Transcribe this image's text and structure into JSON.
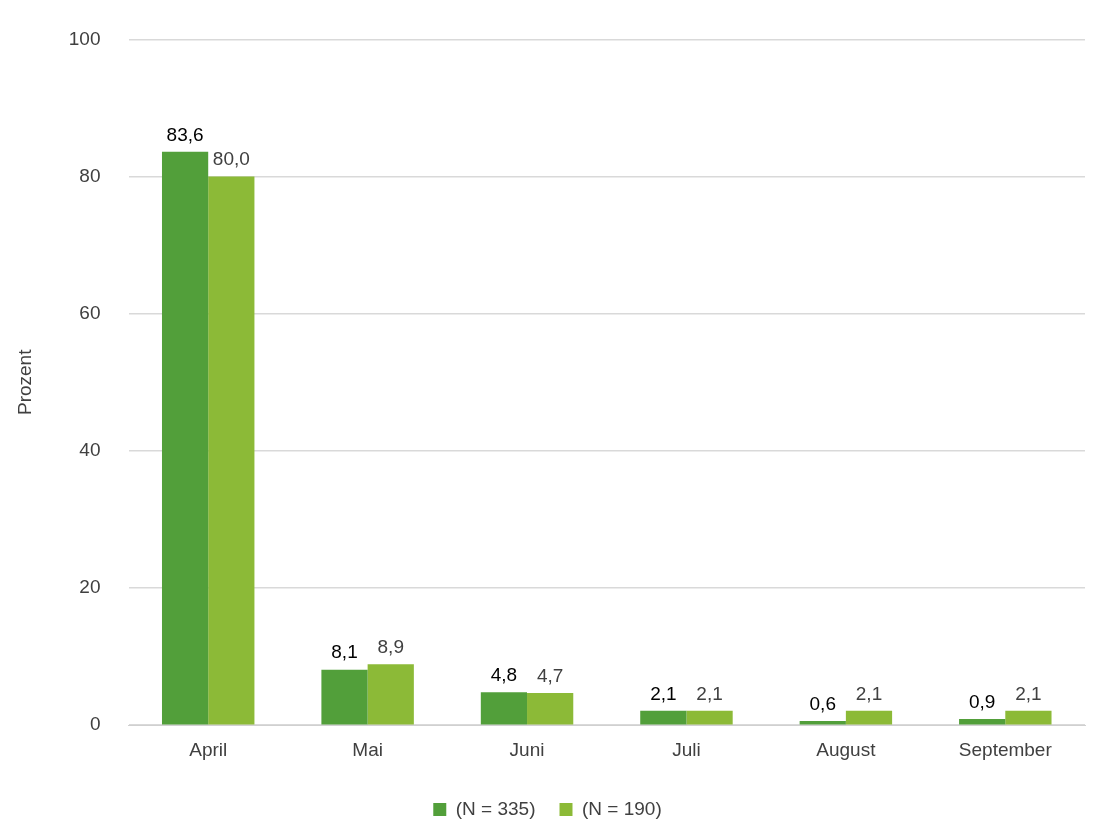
{
  "chart_data": {
    "type": "bar",
    "ylabel": "Prozent",
    "categories": [
      "April",
      "Mai",
      "Juni",
      "Juli",
      "August",
      "September"
    ],
    "series": [
      {
        "name": "(N = 335)",
        "color": "#529f3a",
        "values": [
          83.6,
          8.1,
          4.8,
          2.1,
          0.6,
          0.9
        ],
        "value_labels": [
          "83,6",
          "8,1",
          "4,8",
          "2,1",
          "0,6",
          "0,9"
        ]
      },
      {
        "name": "(N = 190)",
        "color": "#8cba37",
        "values": [
          80.0,
          8.9,
          4.7,
          2.1,
          2.1,
          2.1
        ],
        "value_labels": [
          "80,0",
          "8,9",
          "4,7",
          "2,1",
          "2,1",
          "2,1"
        ]
      }
    ],
    "ylim": [
      0,
      100
    ],
    "yticks": [
      0,
      20,
      40,
      60,
      80,
      100
    ],
    "grid": "y",
    "legend": "bottom"
  }
}
